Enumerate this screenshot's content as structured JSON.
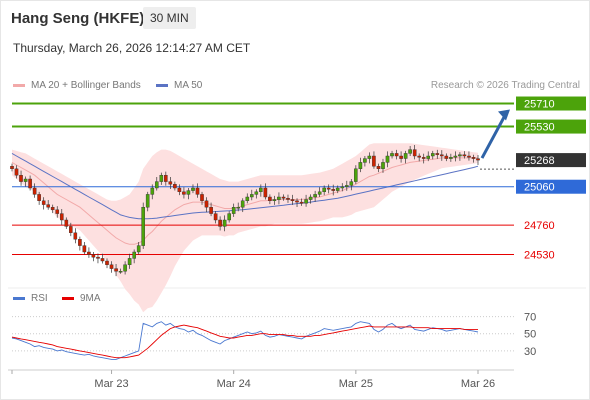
{
  "header": {
    "instrument": "Hang Seng (HKFE)",
    "period": "30 MIN",
    "datetime": "Thursday, March 26, 2026 12:14:27 AM CET",
    "credit": "Research © 2026 Trading Central"
  },
  "legend": {
    "ma20": "MA 20 + Bollinger Bands",
    "ma50": "MA 50",
    "rsi": "RSI",
    "ma9": "9MA"
  },
  "colors": {
    "resistance": "#4ca30b",
    "pivot_dark": "#333333",
    "support_blue": "#2f6ad8",
    "support_red": "#e60000",
    "bollinger_fill": "#fde0e0",
    "ma20": "#f2a9a9",
    "ma50": "#5b73c4",
    "candle_up": "#4ca30b",
    "candle_down": "#cc2200",
    "rsi": "#4a78d0",
    "ma9": "#e60000",
    "arrow": "#2f63a7"
  },
  "chart_data": [
    {
      "type": "candlestick",
      "title": "Hang Seng (HKFE)",
      "x_ticks": [
        "Mar 23",
        "Mar 24",
        "Mar 25",
        "Mar 26"
      ],
      "ylim": [
        24300,
        25800
      ],
      "levels": [
        {
          "value": 25710,
          "label": "25710",
          "kind": "resistance"
        },
        {
          "value": 25530,
          "label": "25530",
          "kind": "resistance"
        },
        {
          "value": 25268,
          "label": "25268",
          "kind": "pivot"
        },
        {
          "value": 25060,
          "label": "25060",
          "kind": "support"
        },
        {
          "value": 24760,
          "label": "24760",
          "kind": "support"
        },
        {
          "value": 24530,
          "label": "24530",
          "kind": "support"
        }
      ],
      "closes": [
        25200,
        25150,
        25100,
        25120,
        25050,
        25000,
        24950,
        24920,
        24900,
        24880,
        24850,
        24800,
        24750,
        24700,
        24650,
        24600,
        24550,
        24530,
        24510,
        24500,
        24480,
        24450,
        24420,
        24400,
        24400,
        24450,
        24500,
        24550,
        24600,
        24900,
        25000,
        25050,
        25100,
        25150,
        25100,
        25080,
        25050,
        25020,
        25000,
        25030,
        25050,
        25000,
        24950,
        24900,
        24850,
        24800,
        24750,
        24800,
        24850,
        24900,
        24900,
        24950,
        24980,
        25000,
        25020,
        25050,
        24980,
        24950,
        24960,
        24980,
        24970,
        24960,
        24950,
        24940,
        24930,
        24960,
        24980,
        25000,
        25020,
        25050,
        25040,
        25030,
        25050,
        25060,
        25070,
        25100,
        25200,
        25250,
        25280,
        25300,
        25220,
        25200,
        25250,
        25300,
        25320,
        25300,
        25280,
        25320,
        25350,
        25300,
        25290,
        25280,
        25300,
        25320,
        25310,
        25300,
        25280,
        25290,
        25300,
        25310,
        25300,
        25290,
        25280,
        25268
      ],
      "ma20": [
        25250,
        25230,
        25210,
        25190,
        25170,
        25150,
        25120,
        25090,
        25060,
        25030,
        25000,
        24980,
        24960,
        24940,
        24920,
        24900,
        24870,
        24840,
        24810,
        24780,
        24750,
        24720,
        24690,
        24660,
        24640,
        24620,
        24610,
        24610,
        24620,
        24640,
        24680,
        24710,
        24750,
        24790,
        24820,
        24850,
        24880,
        24900,
        24920,
        24930,
        24940,
        24940,
        24940,
        24930,
        24920,
        24910,
        24900,
        24890,
        24890,
        24890,
        24900,
        24910,
        24920,
        24930,
        24940,
        24950,
        24950,
        24955,
        24960,
        24960,
        24960,
        24960,
        24960,
        24960,
        24960,
        24965,
        24970,
        24975,
        24980,
        24990,
        25000,
        25010,
        25020,
        25030,
        25045,
        25060,
        25080,
        25100,
        25120,
        25140,
        25150,
        25165,
        25180,
        25195,
        25210,
        25220,
        25230,
        25240,
        25250,
        25255,
        25260,
        25265,
        25270,
        25275,
        25280,
        25285,
        25285,
        25285,
        25285,
        25285,
        25285,
        25285,
        25285,
        25285
      ],
      "ma50": [
        25320,
        25300,
        25280,
        25260,
        25240,
        25220,
        25200,
        25180,
        25160,
        25140,
        25120,
        25100,
        25080,
        25060,
        25040,
        25020,
        25000,
        24980,
        24960,
        24940,
        24920,
        24900,
        24880,
        24860,
        24840,
        24830,
        24820,
        24815,
        24810,
        24810,
        24810,
        24812,
        24815,
        24820,
        24825,
        24830,
        24835,
        24840,
        24845,
        24850,
        24855,
        24858,
        24860,
        24862,
        24864,
        24866,
        24868,
        24870,
        24872,
        24875,
        24878,
        24880,
        24884,
        24888,
        24892,
        24896,
        24900,
        24904,
        24908,
        24912,
        24916,
        24920,
        24924,
        24928,
        24932,
        24936,
        24940,
        24945,
        24950,
        24955,
        24960,
        24965,
        24970,
        24978,
        24986,
        24994,
        25002,
        25010,
        25018,
        25026,
        25034,
        25042,
        25050,
        25058,
        25066,
        25074,
        25082,
        25090,
        25098,
        25106,
        25114,
        25122,
        25130,
        25138,
        25146,
        25154,
        25162,
        25170,
        25178,
        25186,
        25194,
        25202,
        25210,
        25220
      ],
      "bollinger_upper": [
        25350,
        25340,
        25330,
        25320,
        25300,
        25280,
        25260,
        25240,
        25220,
        25200,
        25180,
        25160,
        25140,
        25120,
        25100,
        25080,
        25060,
        25040,
        25020,
        25000,
        24980,
        24960,
        24950,
        24950,
        24960,
        24980,
        25000,
        25050,
        25100,
        25200,
        25250,
        25300,
        25330,
        25350,
        25350,
        25340,
        25320,
        25300,
        25280,
        25260,
        25240,
        25220,
        25200,
        25180,
        25160,
        25140,
        25120,
        25110,
        25100,
        25100,
        25100,
        25110,
        25120,
        25130,
        25140,
        25150,
        25150,
        25150,
        25150,
        25150,
        25150,
        25150,
        25150,
        25150,
        25150,
        25155,
        25160,
        25165,
        25170,
        25180,
        25190,
        25200,
        25220,
        25240,
        25260,
        25280,
        25300,
        25330,
        25360,
        25390,
        25400,
        25400,
        25400,
        25400,
        25400,
        25400,
        25400,
        25400,
        25400,
        25395,
        25390,
        25385,
        25380,
        25375,
        25370,
        25365,
        25360,
        25355,
        25350,
        25345,
        25340,
        25335,
        25330,
        25325
      ],
      "bollinger_lower": [
        25150,
        25120,
        25090,
        25060,
        25040,
        25020,
        24980,
        24940,
        24900,
        24860,
        24820,
        24800,
        24780,
        24760,
        24740,
        24720,
        24680,
        24640,
        24600,
        24560,
        24520,
        24480,
        24430,
        24370,
        24320,
        24260,
        24220,
        24170,
        24140,
        24080,
        24110,
        24120,
        24170,
        24230,
        24290,
        24360,
        24440,
        24500,
        24560,
        24600,
        24640,
        24660,
        24680,
        24680,
        24680,
        24680,
        24680,
        24670,
        24680,
        24680,
        24700,
        24710,
        24720,
        24730,
        24740,
        24750,
        24750,
        24760,
        24770,
        24770,
        24770,
        24770,
        24770,
        24770,
        24770,
        24775,
        24780,
        24785,
        24790,
        24800,
        24810,
        24820,
        24820,
        24820,
        24830,
        24840,
        24860,
        24870,
        24880,
        24890,
        24900,
        24930,
        24960,
        24990,
        25020,
        25040,
        25060,
        25080,
        25100,
        25115,
        25130,
        25145,
        25160,
        25175,
        25190,
        25205,
        25210,
        25215,
        25220,
        25225,
        25230,
        25235,
        25240,
        25245
      ],
      "forecast_target": 25710
    },
    {
      "type": "line",
      "title": "RSI",
      "ylim": [
        10,
        80
      ],
      "y_ticks": [
        70,
        50,
        30
      ],
      "series": [
        {
          "name": "RSI",
          "values": [
            45,
            44,
            42,
            40,
            38,
            35,
            36,
            34,
            33,
            32,
            30,
            31,
            29,
            28,
            27,
            26,
            25,
            26,
            24,
            23,
            22,
            21,
            20,
            20,
            22,
            24,
            26,
            28,
            30,
            62,
            60,
            58,
            62,
            64,
            60,
            62,
            58,
            56,
            55,
            52,
            54,
            50,
            48,
            45,
            42,
            40,
            38,
            42,
            44,
            46,
            48,
            50,
            52,
            50,
            51,
            53,
            48,
            46,
            47,
            49,
            48,
            47,
            46,
            45,
            44,
            47,
            49,
            51,
            53,
            56,
            55,
            54,
            55,
            56,
            57,
            58,
            62,
            64,
            63,
            62,
            55,
            52,
            55,
            60,
            62,
            58,
            56,
            58,
            60,
            55,
            54,
            53,
            55,
            57,
            56,
            55,
            53,
            54,
            55,
            56,
            55,
            54,
            53,
            52
          ]
        },
        {
          "name": "9MA",
          "values": [
            46,
            45,
            44,
            43,
            42,
            41,
            40,
            39,
            38,
            37,
            35,
            34,
            33,
            32,
            31,
            30,
            29,
            28,
            27,
            26,
            25,
            24,
            23,
            22,
            22,
            22,
            23,
            24,
            25,
            29,
            33,
            38,
            43,
            48,
            52,
            56,
            58,
            59,
            60,
            59,
            58,
            57,
            55,
            53,
            51,
            49,
            47,
            46,
            45,
            45,
            46,
            47,
            48,
            48,
            49,
            50,
            50,
            49,
            49,
            49,
            49,
            48,
            48,
            47,
            47,
            47,
            47,
            48,
            48,
            49,
            50,
            51,
            52,
            53,
            54,
            55,
            56,
            57,
            58,
            59,
            58,
            58,
            58,
            58,
            58,
            58,
            58,
            58,
            58,
            57,
            57,
            57,
            57,
            56,
            56,
            56,
            56,
            56,
            56,
            56,
            55,
            55,
            55,
            55
          ]
        }
      ]
    }
  ]
}
